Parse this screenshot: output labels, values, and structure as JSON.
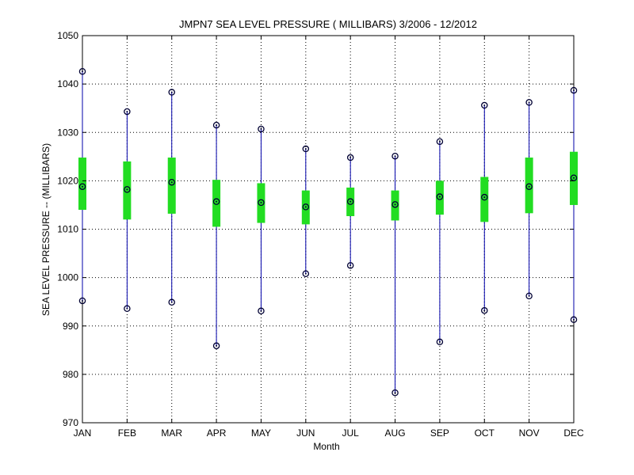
{
  "chart_data": {
    "type": "box",
    "title": "JMPN7  SEA LEVEL PRESSURE ( MILLIBARS) 3/2006 - 12/2012",
    "xlabel": "Month",
    "ylabel": "SEA LEVEL PRESSURE -- (MILLIBARS)",
    "categories": [
      "JAN",
      "FEB",
      "MAR",
      "APR",
      "MAY",
      "JUN",
      "JUL",
      "AUG",
      "SEP",
      "OCT",
      "NOV",
      "DEC"
    ],
    "ylim": [
      970,
      1050
    ],
    "yticks": [
      970,
      980,
      990,
      1000,
      1010,
      1020,
      1030,
      1040,
      1050
    ],
    "grid": true,
    "colors": {
      "whisker": "#0000aa",
      "box": "#22dd22",
      "marker": "#000033",
      "grid": "#000000"
    },
    "series": [
      {
        "name": "max",
        "values": [
          1042.6,
          1034.3,
          1038.3,
          1031.5,
          1030.7,
          1026.6,
          1024.8,
          1025.1,
          1028.1,
          1035.6,
          1036.2,
          1038.7
        ]
      },
      {
        "name": "q3",
        "values": [
          1024.8,
          1024.0,
          1024.8,
          1020.2,
          1019.5,
          1018.0,
          1018.6,
          1018.0,
          1020.0,
          1020.8,
          1024.8,
          1026.0
        ]
      },
      {
        "name": "mean",
        "values": [
          1018.8,
          1018.2,
          1019.7,
          1015.7,
          1015.5,
          1014.6,
          1015.7,
          1015.1,
          1016.7,
          1016.6,
          1018.8,
          1020.6
        ]
      },
      {
        "name": "q1",
        "values": [
          1014.0,
          1012.0,
          1013.2,
          1010.5,
          1011.3,
          1011.0,
          1012.7,
          1011.8,
          1013.0,
          1011.5,
          1013.3,
          1015.0
        ]
      },
      {
        "name": "min",
        "values": [
          995.2,
          993.6,
          994.9,
          985.9,
          993.1,
          1000.8,
          1002.5,
          976.2,
          986.7,
          993.2,
          996.2,
          991.3
        ]
      }
    ]
  }
}
